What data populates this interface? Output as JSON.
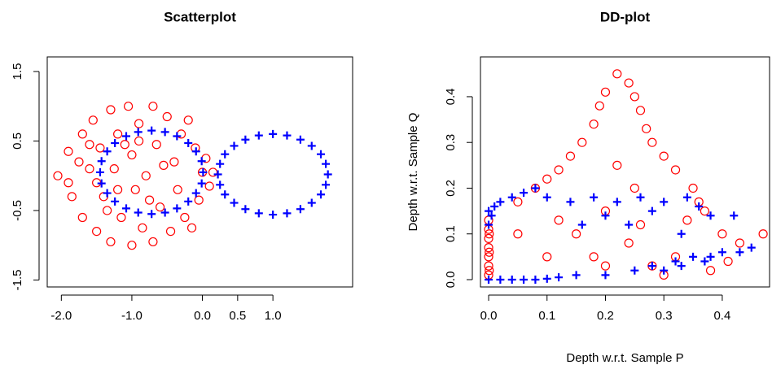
{
  "chart_data": [
    {
      "type": "scatter",
      "title": "Scatterplot",
      "xlim": [
        -2.2,
        2.13
      ],
      "ylim": [
        -1.6,
        1.71
      ],
      "xticks": [
        {
          "value": -2.0,
          "label": "-2.0"
        },
        {
          "value": -1.0,
          "label": "-1.0"
        },
        {
          "value": 0.0,
          "label": "0.0"
        },
        0.5,
        {
          "value": 1.0,
          "label": "1.0"
        }
      ],
      "yticks": [
        -1.5,
        -0.5,
        0.5,
        1.5
      ],
      "series": [
        {
          "color": "#ff0000",
          "marker": "circle",
          "x": [
            -2.05,
            -1.9,
            -1.85,
            -1.7,
            -1.7,
            -1.6,
            -1.55,
            -1.5,
            -1.45,
            -1.4,
            -1.3,
            -1.3,
            -1.25,
            -1.2,
            -1.15,
            -1.05,
            -1.0,
            -1.0,
            -0.95,
            -0.9,
            -0.85,
            -0.8,
            -0.7,
            -0.7,
            -0.65,
            -0.6,
            -0.5,
            -0.45,
            -0.4,
            -0.35,
            -0.3,
            -0.25,
            -0.1,
            -0.05,
            0.0,
            0.05,
            0.1,
            -1.75,
            -1.35,
            -1.1,
            -0.55,
            -0.75,
            -1.5,
            -0.2,
            -1.2,
            -0.15,
            0.15,
            -1.9,
            -0.9,
            -1.6
          ],
          "y": [
            0.0,
            0.35,
            -0.3,
            0.6,
            -0.6,
            0.1,
            0.8,
            -0.8,
            0.4,
            -0.3,
            0.95,
            -0.95,
            0.1,
            0.6,
            -0.6,
            1.0,
            -1.0,
            0.3,
            -0.2,
            0.75,
            -0.75,
            0.0,
            1.0,
            -0.95,
            0.45,
            -0.45,
            0.85,
            -0.8,
            0.2,
            -0.2,
            0.6,
            -0.6,
            0.4,
            -0.35,
            0.05,
            0.25,
            -0.15,
            0.2,
            -0.5,
            0.45,
            0.15,
            -0.35,
            -0.1,
            0.8,
            -0.2,
            -0.75,
            0.05,
            -0.1,
            0.5,
            0.45
          ]
        },
        {
          "color": "#0000ff",
          "marker": "plus",
          "x": [
            0.01,
            -0.01,
            -0.09,
            -0.2,
            -0.36,
            -0.53,
            -0.72,
            -0.91,
            -1.08,
            -1.24,
            -1.35,
            -1.43,
            -1.45,
            -1.43,
            -1.35,
            -1.24,
            -1.08,
            -0.91,
            -0.72,
            -0.53,
            -0.36,
            -0.2,
            -0.09,
            -0.01,
            1.78,
            1.75,
            1.68,
            1.55,
            1.39,
            1.2,
            1.0,
            0.8,
            0.61,
            0.45,
            0.32,
            0.25,
            0.22,
            0.25,
            0.32,
            0.45,
            0.61,
            0.8,
            1.0,
            1.2,
            1.39,
            1.55,
            1.68,
            1.75
          ],
          "y": [
            0.05,
            0.21,
            0.35,
            0.47,
            0.57,
            0.63,
            0.65,
            0.63,
            0.57,
            0.47,
            0.35,
            0.21,
            0.05,
            -0.11,
            -0.25,
            -0.37,
            -0.47,
            -0.53,
            -0.55,
            -0.53,
            -0.47,
            -0.37,
            -0.25,
            -0.11,
            0.02,
            0.17,
            0.31,
            0.43,
            0.52,
            0.58,
            0.6,
            0.58,
            0.52,
            0.43,
            0.31,
            0.17,
            0.02,
            -0.13,
            -0.27,
            -0.39,
            -0.48,
            -0.54,
            -0.56,
            -0.54,
            -0.48,
            -0.39,
            -0.27,
            -0.13
          ]
        }
      ]
    },
    {
      "type": "scatter",
      "title": "DD-plot",
      "x_label": "Depth w.r.t. Sample P",
      "y_label": "Depth w.r.t. Sample Q",
      "xlim": [
        -0.014,
        0.481
      ],
      "ylim": [
        -0.016,
        0.487
      ],
      "xticks": [
        {
          "value": 0.0,
          "label": "0.0"
        },
        0.1,
        0.2,
        0.3,
        0.4
      ],
      "yticks": [
        {
          "value": 0.0,
          "label": "0.0"
        },
        0.1,
        0.2,
        0.3,
        0.4
      ],
      "series": [
        {
          "color": "#ff0000",
          "marker": "circle",
          "x": [
            0,
            0,
            0,
            0,
            0,
            0,
            0,
            0.001,
            0.001,
            0.001,
            0.05,
            0.08,
            0.1,
            0.12,
            0.14,
            0.16,
            0.18,
            0.19,
            0.2,
            0.22,
            0.24,
            0.25,
            0.26,
            0.27,
            0.28,
            0.3,
            0.32,
            0.35,
            0.37,
            0.4,
            0.43,
            0.47,
            0.15,
            0.18,
            0.2,
            0.22,
            0.24,
            0.26,
            0.28,
            0.1,
            0.05,
            0.32,
            0.34,
            0.38,
            0.3,
            0.12,
            0.2,
            0.36,
            0.41,
            0.25
          ],
          "y": [
            0.01,
            0.03,
            0.05,
            0.07,
            0.09,
            0.11,
            0.13,
            0.02,
            0.06,
            0.1,
            0.17,
            0.2,
            0.22,
            0.24,
            0.27,
            0.3,
            0.34,
            0.38,
            0.41,
            0.45,
            0.43,
            0.4,
            0.37,
            0.33,
            0.3,
            0.27,
            0.24,
            0.2,
            0.15,
            0.1,
            0.08,
            0.1,
            0.1,
            0.05,
            0.15,
            0.25,
            0.08,
            0.12,
            0.03,
            0.05,
            0.1,
            0.05,
            0.13,
            0.02,
            0.01,
            0.13,
            0.03,
            0.17,
            0.04,
            0.2
          ]
        },
        {
          "color": "#0000ff",
          "marker": "plus",
          "x": [
            0.0,
            0.0,
            0.005,
            0.01,
            0.02,
            0.04,
            0.06,
            0.08,
            0.1,
            0.14,
            0.18,
            0.22,
            0.26,
            0.3,
            0.34,
            0.36,
            0.38,
            0.42,
            0.2,
            0.28,
            0.24,
            0.33,
            0.16,
            0.0,
            0.02,
            0.04,
            0.06,
            0.08,
            0.1,
            0.12,
            0.15,
            0.2,
            0.25,
            0.28,
            0.32,
            0.35,
            0.38,
            0.4,
            0.43,
            0.45,
            0.33,
            0.3,
            0.37
          ],
          "y": [
            0.15,
            0.12,
            0.14,
            0.16,
            0.17,
            0.18,
            0.19,
            0.2,
            0.18,
            0.17,
            0.18,
            0.17,
            0.18,
            0.17,
            0.18,
            0.16,
            0.14,
            0.14,
            0.14,
            0.15,
            0.12,
            0.1,
            0.12,
            0.0,
            0.0,
            0.0,
            0.0,
            0.0,
            0.002,
            0.005,
            0.01,
            0.01,
            0.02,
            0.03,
            0.04,
            0.05,
            0.05,
            0.06,
            0.06,
            0.07,
            0.03,
            0.02,
            0.04
          ]
        }
      ]
    }
  ]
}
